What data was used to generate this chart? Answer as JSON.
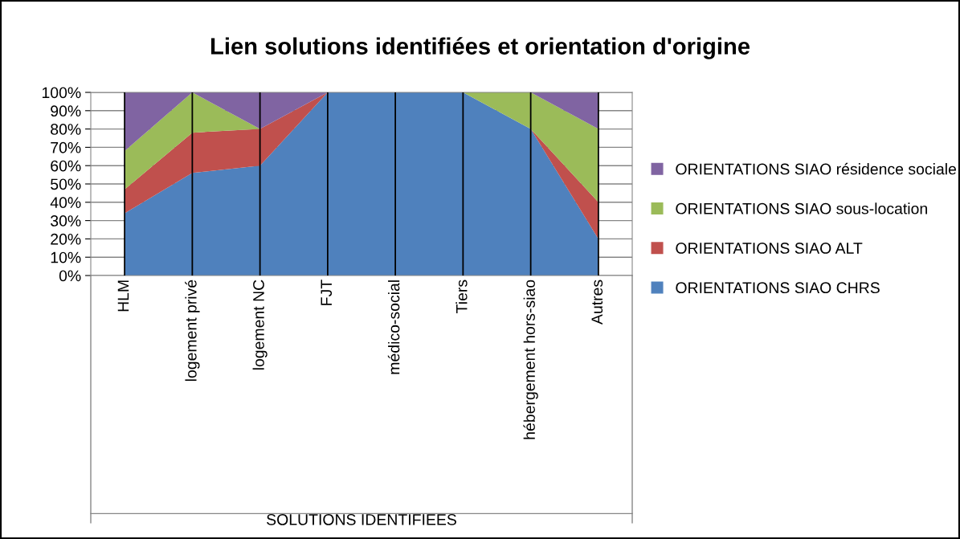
{
  "chart_data": {
    "type": "area",
    "stacked": true,
    "title": "Lien solutions identifiées et orientation d'origine",
    "xlabel": "SOLUTIONS IDENTIFIEES",
    "categories": [
      "HLM",
      "logement privé",
      "logement NC",
      "FJT",
      "médico-social",
      "Tiers",
      "hébergement hors-siao",
      "Autres"
    ],
    "series": [
      {
        "name": "ORIENTATIONS SIAO CHRS",
        "color": "#4f81bd",
        "values": [
          34,
          56,
          60,
          100,
          100,
          100,
          80,
          20
        ]
      },
      {
        "name": "ORIENTATIONS SIAO ALT",
        "color": "#c0504d",
        "values": [
          13,
          22,
          20,
          0,
          0,
          0,
          0,
          20
        ]
      },
      {
        "name": "ORIENTATIONS SIAO sous-location",
        "color": "#9bbb59",
        "values": [
          21,
          22,
          0,
          0,
          0,
          0,
          20,
          40
        ]
      },
      {
        "name": "ORIENTATIONS SIAO résidence sociale",
        "color": "#8064a2",
        "values": [
          32,
          0,
          20,
          0,
          0,
          0,
          0,
          20
        ]
      }
    ],
    "ylim": [
      0,
      100
    ],
    "yticks": [
      {
        "value": 0,
        "label": "0%"
      },
      {
        "value": 10,
        "label": "10%"
      },
      {
        "value": 20,
        "label": "20%"
      },
      {
        "value": 30,
        "label": "30%"
      },
      {
        "value": 40,
        "label": "40%"
      },
      {
        "value": 50,
        "label": "50%"
      },
      {
        "value": 60,
        "label": "60%"
      },
      {
        "value": 70,
        "label": "70%"
      },
      {
        "value": 80,
        "label": "80%"
      },
      {
        "value": 90,
        "label": "90%"
      },
      {
        "value": 100,
        "label": "100%"
      }
    ],
    "grid": true,
    "legend": "right"
  }
}
